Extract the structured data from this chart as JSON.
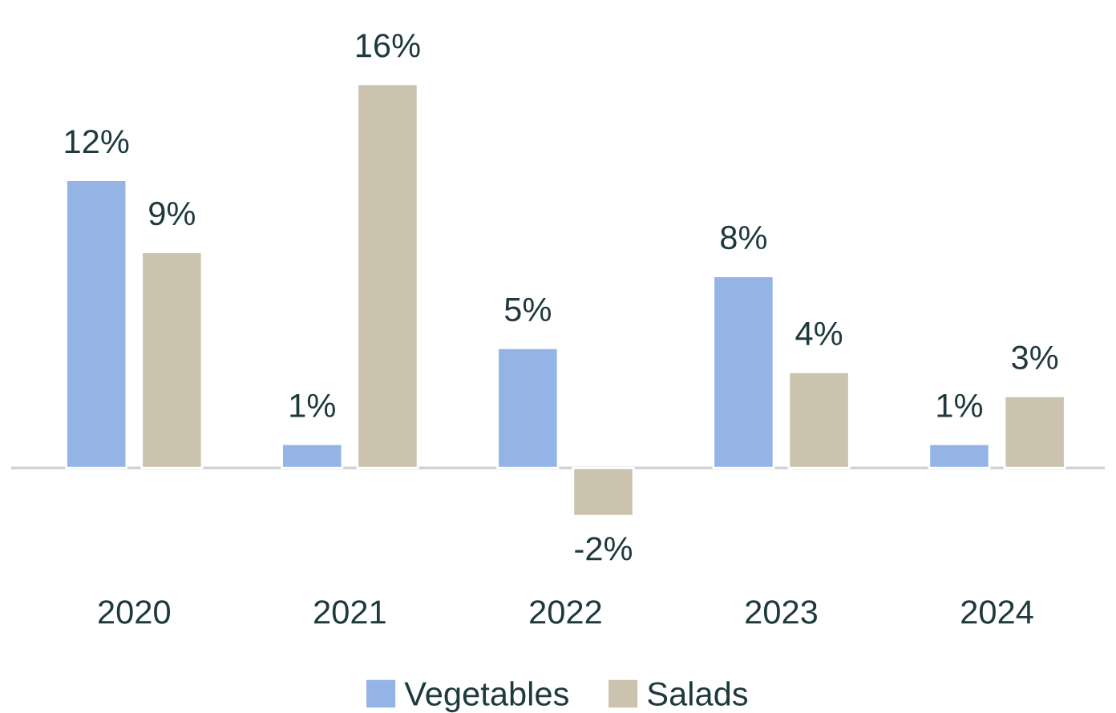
{
  "chart_data": {
    "type": "bar",
    "categories": [
      "2020",
      "2021",
      "2022",
      "2023",
      "2024"
    ],
    "series": [
      {
        "name": "Vegetables",
        "color": "#95b4e6",
        "values": [
          12,
          1,
          5,
          8,
          1
        ],
        "value_labels": [
          "12%",
          "1%",
          "5%",
          "8%",
          "1%"
        ]
      },
      {
        "name": "Salads",
        "color": "#cbc3ad",
        "values": [
          9,
          16,
          -2,
          4,
          3
        ],
        "value_labels": [
          "9%",
          "16%",
          "-2%",
          "4%",
          "3%"
        ]
      }
    ],
    "legend": "bottom",
    "grid": false
  }
}
